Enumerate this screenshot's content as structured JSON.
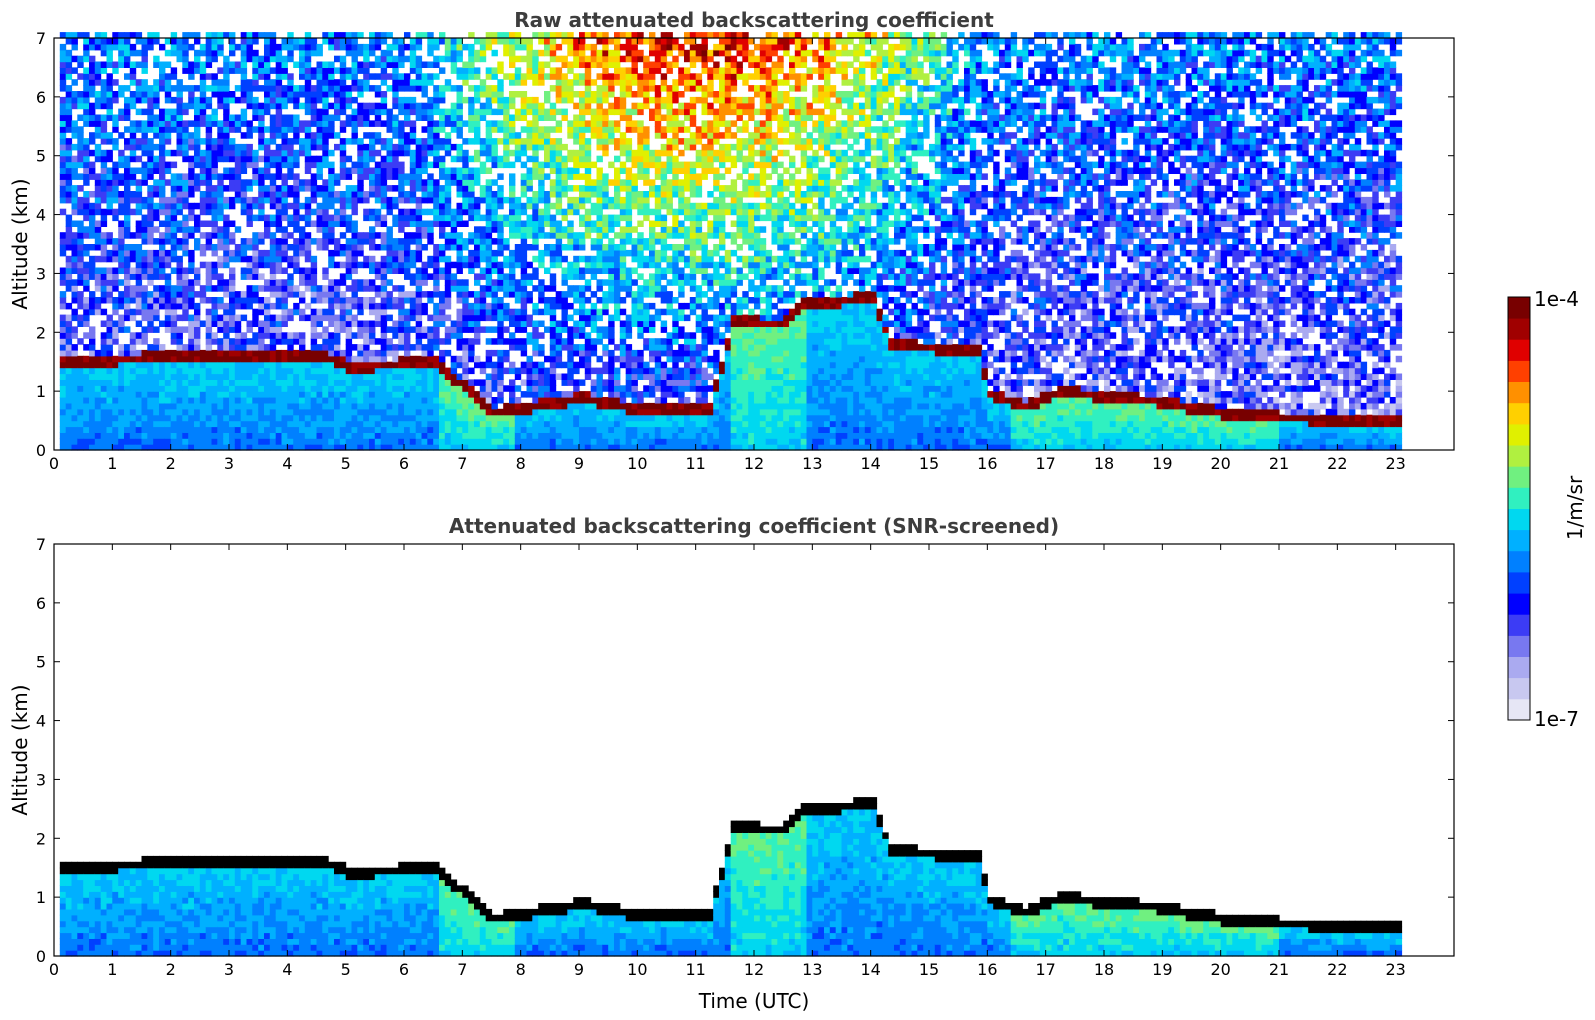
{
  "chart_data": [
    {
      "type": "heatmap",
      "title": "Raw attenuated backscattering coefficient",
      "xlabel": "",
      "ylabel": "Altitude (km)",
      "xlim": [
        0,
        24
      ],
      "ylim": [
        0,
        7
      ],
      "x_ticks": [
        "0",
        "1",
        "2",
        "3",
        "4",
        "5",
        "6",
        "7",
        "8",
        "9",
        "10",
        "11",
        "12",
        "13",
        "14",
        "15",
        "16",
        "17",
        "18",
        "19",
        "20",
        "21",
        "22",
        "23"
      ],
      "y_ticks": [
        "0",
        "1",
        "2",
        "3",
        "4",
        "5",
        "6",
        "7"
      ],
      "data_time_range": [
        0.1,
        23.1
      ],
      "cloud_base_km": [
        [
          0.1,
          1.35
        ],
        [
          2,
          1.45
        ],
        [
          4.6,
          1.45
        ],
        [
          5,
          1.28
        ],
        [
          6.5,
          1.35
        ],
        [
          7.5,
          0.5
        ],
        [
          9,
          0.75
        ],
        [
          10,
          0.55
        ],
        [
          11.2,
          0.55
        ],
        [
          11.6,
          2.05
        ],
        [
          12.4,
          2.0
        ],
        [
          12.8,
          2.35
        ],
        [
          14,
          2.45
        ],
        [
          14.3,
          1.65
        ],
        [
          15.8,
          1.55
        ],
        [
          16,
          0.8
        ],
        [
          16.6,
          0.6
        ],
        [
          17.2,
          0.85
        ],
        [
          18.8,
          0.7
        ],
        [
          20.2,
          0.45
        ],
        [
          23.1,
          0.33
        ]
      ],
      "colorscale": "log"
    },
    {
      "type": "heatmap",
      "title": "Attenuated backscattering coefficient (SNR-screened)",
      "xlabel": "Time (UTC)",
      "ylabel": "Altitude (km)",
      "xlim": [
        0,
        24
      ],
      "ylim": [
        0,
        7
      ],
      "x_ticks": [
        "0",
        "1",
        "2",
        "3",
        "4",
        "5",
        "6",
        "7",
        "8",
        "9",
        "10",
        "11",
        "12",
        "13",
        "14",
        "15",
        "16",
        "17",
        "18",
        "19",
        "20",
        "21",
        "22",
        "23"
      ],
      "y_ticks": [
        "0",
        "1",
        "2",
        "3",
        "4",
        "5",
        "6",
        "7"
      ],
      "data_time_range": [
        0.1,
        23.1
      ],
      "colorscale": "log"
    }
  ],
  "colorbar": {
    "max_label": "1e-4",
    "min_label": "1e-7",
    "label": "1/m/sr",
    "colors": [
      "#e6e6f5",
      "#c8c8f0",
      "#aaaaf0",
      "#7878f0",
      "#3c3cf5",
      "#0000ff",
      "#0040ff",
      "#0080ff",
      "#00b0ff",
      "#00d8f0",
      "#30f0c0",
      "#70f080",
      "#b0f040",
      "#e0f000",
      "#ffd000",
      "#ff9000",
      "#ff4000",
      "#e00000",
      "#a00000",
      "#780000"
    ]
  }
}
